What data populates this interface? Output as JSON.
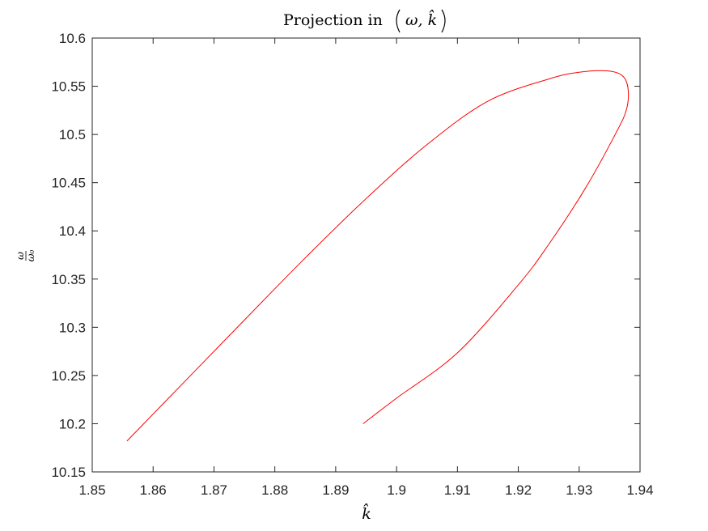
{
  "chart_data": {
    "type": "line",
    "title_text": "Projection in",
    "title_math": "ω, k̂",
    "xlabel": "k̂",
    "ylabel_num": "ω",
    "ylabel_den": "ω₀",
    "xlim": [
      1.85,
      1.94
    ],
    "ylim": [
      10.15,
      10.6
    ],
    "xticks": [
      1.85,
      1.86,
      1.87,
      1.88,
      1.89,
      1.9,
      1.91,
      1.92,
      1.93,
      1.94
    ],
    "yticks": [
      10.15,
      10.2,
      10.25,
      10.3,
      10.35,
      10.4,
      10.45,
      10.5,
      10.55,
      10.6
    ],
    "xtick_labels": [
      "1.85",
      "1.86",
      "1.87",
      "1.88",
      "1.89",
      "1.9",
      "1.91",
      "1.92",
      "1.93",
      "1.94"
    ],
    "ytick_labels": [
      "10.15",
      "10.2",
      "10.25",
      "10.3",
      "10.35",
      "10.4",
      "10.45",
      "10.5",
      "10.55",
      "10.6"
    ],
    "grid": false,
    "series": [
      {
        "color": "#ff0000",
        "x": [
          1.8557,
          1.865,
          1.875,
          1.885,
          1.895,
          1.905,
          1.915,
          1.925,
          1.93,
          1.9345,
          1.937,
          1.938,
          1.9378,
          1.936,
          1.931,
          1.925,
          1.92,
          1.91,
          1.9,
          1.8945
        ],
        "y": [
          10.182,
          10.2425,
          10.3075,
          10.372,
          10.4335,
          10.4895,
          10.5345,
          10.5575,
          10.5645,
          10.566,
          10.5615,
          10.549,
          10.5265,
          10.501,
          10.444,
          10.386,
          10.344,
          10.2735,
          10.2265,
          10.2
        ]
      }
    ]
  }
}
